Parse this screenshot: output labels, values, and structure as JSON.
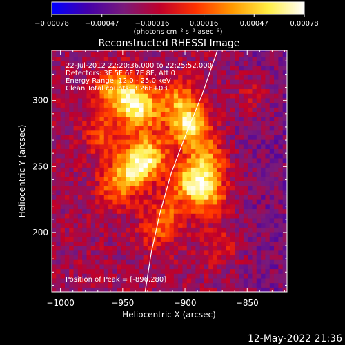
{
  "chart_data": {
    "type": "heatmap",
    "title": "Reconstructed RHESSI Image",
    "xlabel": "Heliocentric X (arcsec)",
    "ylabel": "Heliocentric Y (arcsec)",
    "xlim": [
      -1007,
      -818
    ],
    "ylim": [
      155,
      338
    ],
    "x_ticks": [
      -1000,
      -950,
      -900,
      -850
    ],
    "y_ticks": [
      200,
      250,
      300
    ],
    "x_tick_labels": [
      "−1000",
      "−950",
      "−900",
      "−850"
    ],
    "y_tick_labels": [
      "200",
      "250",
      "300"
    ],
    "colorbar": {
      "min": -0.00078,
      "max": 0.00078,
      "ticks": [
        -0.00078,
        -0.00047,
        -0.00016,
        0.00016,
        0.00047,
        0.00078
      ],
      "tick_labels": [
        "−0.00078",
        "−0.00047",
        "−0.00016",
        "0.00016",
        "0.00047",
        "0.00078"
      ],
      "unit_label": "(photons cm⁻² s⁻¹ asec⁻²)",
      "colors": [
        "#0000ff",
        "#4400aa",
        "#7a1a7a",
        "#c0002a",
        "#ff3300",
        "#ff9900",
        "#ffee44",
        "#ffffff"
      ]
    },
    "info_lines": [
      "22-Jul-2012 22:20:36.000 to 22:25:52.000",
      "Detectors: 3F 5F 6F 7F 8F, Att 0",
      "Energy Range: 12.0 - 25.0 keV",
      "Clean     Total counts: 3.26E+03"
    ],
    "peak_label": "Position of Peak = [-896,280]",
    "peak": [
      -896,
      280
    ],
    "sources": [
      {
        "x": -935,
        "y": 292,
        "value": 0.0006
      },
      {
        "x": -943,
        "y": 303,
        "value": 0.0005
      },
      {
        "x": -958,
        "y": 308,
        "value": 0.00045
      },
      {
        "x": -930,
        "y": 258,
        "value": 0.0007
      },
      {
        "x": -942,
        "y": 248,
        "value": 0.00055
      },
      {
        "x": -955,
        "y": 235,
        "value": 0.0004
      },
      {
        "x": -896,
        "y": 280,
        "value": 0.00078
      },
      {
        "x": -905,
        "y": 300,
        "value": 0.0005
      },
      {
        "x": -893,
        "y": 238,
        "value": 0.00075
      },
      {
        "x": -882,
        "y": 255,
        "value": 0.0005
      },
      {
        "x": -880,
        "y": 228,
        "value": 0.00045
      },
      {
        "x": -965,
        "y": 275,
        "value": 0.00035
      },
      {
        "x": -915,
        "y": 215,
        "value": 0.0003
      },
      {
        "x": -922,
        "y": 200,
        "value": 0.00025
      },
      {
        "x": -870,
        "y": 190,
        "value": 0.0002
      },
      {
        "x": -845,
        "y": 305,
        "value": 0.0002
      }
    ],
    "limb": [
      [
        -932,
        155
      ],
      [
        -927,
        185
      ],
      [
        -920,
        215
      ],
      [
        -911,
        245
      ],
      [
        -899,
        275
      ],
      [
        -886,
        305
      ],
      [
        -874,
        338
      ]
    ],
    "grid": false
  },
  "timestamp": "12-May-2022 21:36"
}
